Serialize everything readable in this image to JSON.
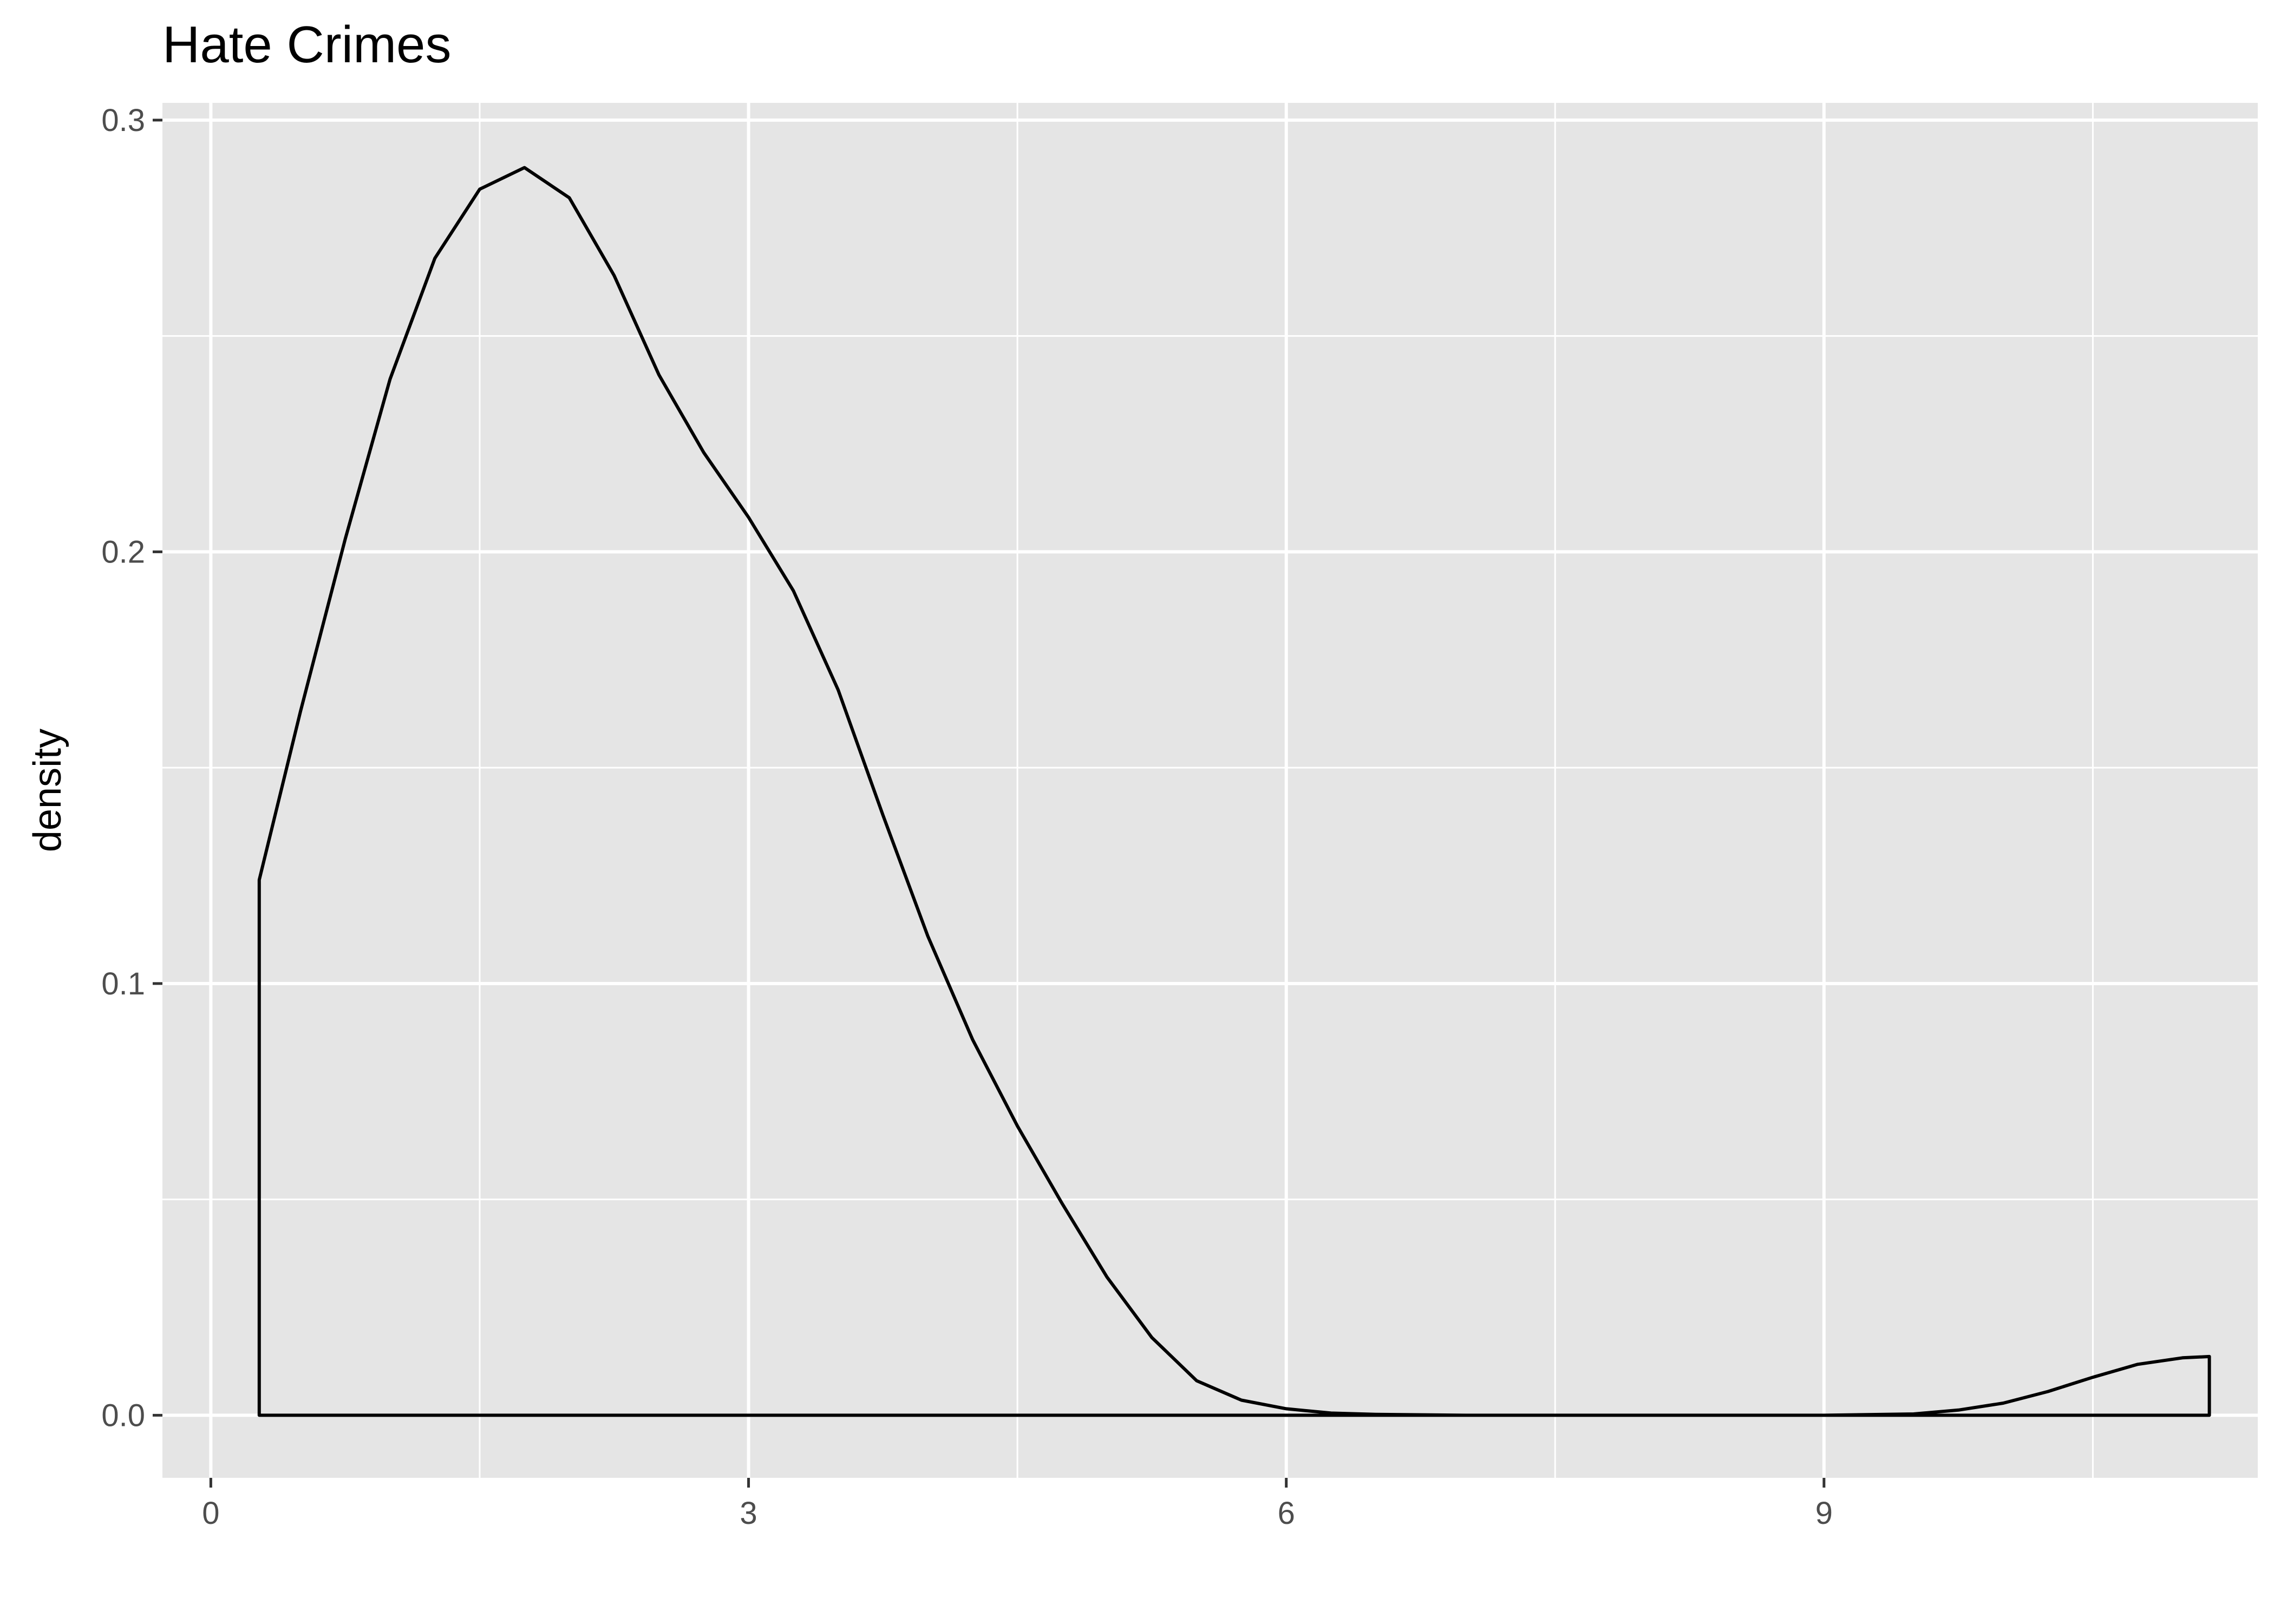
{
  "chart_data": {
    "type": "area",
    "title": "Hate Crimes",
    "xlabel": "",
    "ylabel": "density",
    "xlim": [
      -0.27,
      11.42
    ],
    "ylim": [
      -0.0145,
      0.304
    ],
    "x_ticks": [
      {
        "value": 0,
        "label": "0"
      },
      {
        "value": 3,
        "label": "3"
      },
      {
        "value": 6,
        "label": "6"
      },
      {
        "value": 9,
        "label": "9"
      }
    ],
    "y_ticks": [
      {
        "value": 0.0,
        "label": "0.0"
      },
      {
        "value": 0.1,
        "label": "0.1"
      },
      {
        "value": 0.2,
        "label": "0.2"
      },
      {
        "value": 0.3,
        "label": "0.3"
      }
    ],
    "x_minor_breaks": [
      1.5,
      4.5,
      7.5,
      10.5
    ],
    "y_minor_breaks": [
      0.05,
      0.15,
      0.25
    ],
    "grid": true,
    "panel_background": "#e5e5e5",
    "grid_color": "#ffffff",
    "line_color": "#000000",
    "fill": "none",
    "series": [
      {
        "x": [
          0.27,
          0.5,
          0.75,
          1.0,
          1.25,
          1.5,
          1.75,
          2.0,
          2.25,
          2.5,
          2.75,
          3.0,
          3.25,
          3.5,
          3.75,
          4.0,
          4.25,
          4.5,
          4.75,
          5.0,
          5.25,
          5.5,
          5.75,
          6.0,
          6.25,
          6.5,
          7.0,
          7.5,
          8.0,
          8.5,
          9.0,
          9.5,
          9.75,
          10.0,
          10.25,
          10.5,
          10.75,
          11.0,
          11.15
        ],
        "y": [
          0.124,
          0.163,
          0.203,
          0.24,
          0.268,
          0.284,
          0.289,
          0.282,
          0.264,
          0.241,
          0.223,
          0.208,
          0.191,
          0.168,
          0.139,
          0.111,
          0.087,
          0.067,
          0.049,
          0.032,
          0.018,
          0.008,
          0.0035,
          0.0015,
          0.0005,
          0.0002,
          0.0,
          0.0,
          0.0,
          0.0,
          0.0,
          0.0003,
          0.0012,
          0.0028,
          0.0055,
          0.0088,
          0.0118,
          0.0133,
          0.0136
        ]
      }
    ]
  }
}
